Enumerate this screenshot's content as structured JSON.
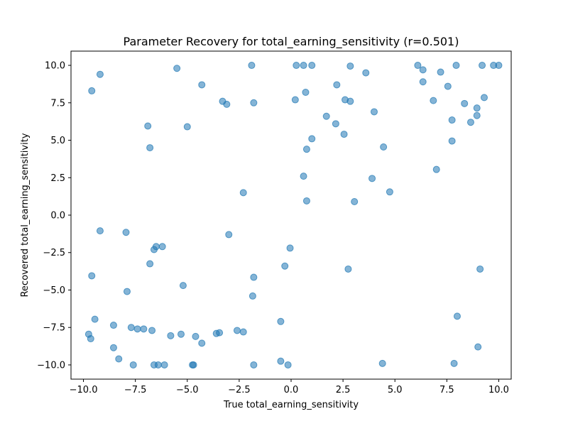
{
  "chart_data": {
    "type": "scatter",
    "title": "Parameter Recovery for total_earning_sensitivity (r=0.501)",
    "xlabel": "True total_earning_sensitivity",
    "ylabel": "Recovered total_earning_sensitivity",
    "xlim": [
      -10.6,
      10.6
    ],
    "ylim": [
      -10.95,
      10.95
    ],
    "x_ticks": [
      -10.0,
      -7.5,
      -5.0,
      -2.5,
      0.0,
      2.5,
      5.0,
      7.5,
      10.0
    ],
    "y_ticks": [
      -10.0,
      -7.5,
      -5.0,
      -2.5,
      0.0,
      2.5,
      5.0,
      7.5,
      10.0
    ],
    "x_tick_labels": [
      "−10.0",
      "−7.5",
      "−5.0",
      "−2.5",
      "0.0",
      "2.5",
      "5.0",
      "7.5",
      "10.0"
    ],
    "y_tick_labels": [
      "−10.0",
      "−7.5",
      "−5.0",
      "−2.5",
      "0.0",
      "2.5",
      "5.0",
      "7.5",
      "10.0"
    ],
    "grid": false,
    "marker_color": "#1f77b4",
    "marker_alpha": 0.55,
    "points": [
      {
        "x": -9.6,
        "y": 8.3
      },
      {
        "x": -9.2,
        "y": 9.4
      },
      {
        "x": -5.5,
        "y": 9.8
      },
      {
        "x": -4.3,
        "y": 8.7
      },
      {
        "x": -3.3,
        "y": 7.6
      },
      {
        "x": -3.1,
        "y": 7.4
      },
      {
        "x": -1.9,
        "y": 10.0
      },
      {
        "x": -1.8,
        "y": 7.5
      },
      {
        "x": -6.9,
        "y": 5.95
      },
      {
        "x": -6.8,
        "y": 4.5
      },
      {
        "x": -5.0,
        "y": 5.9
      },
      {
        "x": -2.3,
        "y": 1.5
      },
      {
        "x": -9.2,
        "y": -1.05
      },
      {
        "x": -7.95,
        "y": -1.15
      },
      {
        "x": -3.0,
        "y": -1.3
      },
      {
        "x": -6.6,
        "y": -2.3
      },
      {
        "x": -6.5,
        "y": -2.1
      },
      {
        "x": -6.2,
        "y": -2.1
      },
      {
        "x": -6.8,
        "y": -3.25
      },
      {
        "x": -9.6,
        "y": -4.05
      },
      {
        "x": -7.9,
        "y": -5.1
      },
      {
        "x": -5.2,
        "y": -4.7
      },
      {
        "x": -1.8,
        "y": -4.15
      },
      {
        "x": -1.85,
        "y": -5.4
      },
      {
        "x": -9.45,
        "y": -6.95
      },
      {
        "x": -9.75,
        "y": -7.95
      },
      {
        "x": -9.65,
        "y": -8.25
      },
      {
        "x": -8.55,
        "y": -7.35
      },
      {
        "x": -7.7,
        "y": -7.5
      },
      {
        "x": -7.4,
        "y": -7.6
      },
      {
        "x": -7.1,
        "y": -7.6
      },
      {
        "x": -6.7,
        "y": -7.7
      },
      {
        "x": -5.8,
        "y": -8.05
      },
      {
        "x": -5.3,
        "y": -7.95
      },
      {
        "x": -4.6,
        "y": -8.1
      },
      {
        "x": -4.3,
        "y": -8.55
      },
      {
        "x": -3.6,
        "y": -7.9
      },
      {
        "x": -3.45,
        "y": -7.85
      },
      {
        "x": -2.6,
        "y": -7.7
      },
      {
        "x": -2.3,
        "y": -7.8
      },
      {
        "x": -8.55,
        "y": -8.85
      },
      {
        "x": -8.3,
        "y": -9.6
      },
      {
        "x": -7.6,
        "y": -10.0
      },
      {
        "x": -6.6,
        "y": -10.0
      },
      {
        "x": -6.4,
        "y": -10.0
      },
      {
        "x": -6.1,
        "y": -10.0
      },
      {
        "x": -4.75,
        "y": -10.0
      },
      {
        "x": -4.7,
        "y": -10.0
      },
      {
        "x": -1.8,
        "y": -10.0
      },
      {
        "x": -0.5,
        "y": -7.1
      },
      {
        "x": -0.5,
        "y": -9.75
      },
      {
        "x": -0.15,
        "y": -10.0
      },
      {
        "x": -0.3,
        "y": -3.4
      },
      {
        "x": -0.05,
        "y": -2.2
      },
      {
        "x": 0.25,
        "y": 10.0
      },
      {
        "x": 0.6,
        "y": 10.0
      },
      {
        "x": 1.0,
        "y": 10.0
      },
      {
        "x": 2.85,
        "y": 9.95
      },
      {
        "x": 3.6,
        "y": 9.5
      },
      {
        "x": 2.2,
        "y": 8.7
      },
      {
        "x": 0.7,
        "y": 8.2
      },
      {
        "x": 0.2,
        "y": 7.7
      },
      {
        "x": 2.6,
        "y": 7.7
      },
      {
        "x": 2.85,
        "y": 7.6
      },
      {
        "x": 4.0,
        "y": 6.9
      },
      {
        "x": 1.7,
        "y": 6.6
      },
      {
        "x": 2.15,
        "y": 6.1
      },
      {
        "x": 2.55,
        "y": 5.4
      },
      {
        "x": 1.0,
        "y": 5.1
      },
      {
        "x": 0.75,
        "y": 4.4
      },
      {
        "x": 4.45,
        "y": 4.55
      },
      {
        "x": 0.6,
        "y": 2.6
      },
      {
        "x": 3.9,
        "y": 2.45
      },
      {
        "x": 0.75,
        "y": 0.95
      },
      {
        "x": 3.05,
        "y": 0.9
      },
      {
        "x": 4.75,
        "y": 1.55
      },
      {
        "x": 2.75,
        "y": -3.6
      },
      {
        "x": 4.4,
        "y": -9.9
      },
      {
        "x": 6.1,
        "y": 10.0
      },
      {
        "x": 6.35,
        "y": 9.7
      },
      {
        "x": 7.95,
        "y": 10.0
      },
      {
        "x": 9.2,
        "y": 10.0
      },
      {
        "x": 9.75,
        "y": 10.0
      },
      {
        "x": 10.0,
        "y": 10.0
      },
      {
        "x": 7.2,
        "y": 9.55
      },
      {
        "x": 6.35,
        "y": 8.9
      },
      {
        "x": 7.55,
        "y": 8.6
      },
      {
        "x": 9.3,
        "y": 7.85
      },
      {
        "x": 6.85,
        "y": 7.65
      },
      {
        "x": 8.35,
        "y": 7.45
      },
      {
        "x": 8.95,
        "y": 7.15
      },
      {
        "x": 8.95,
        "y": 6.65
      },
      {
        "x": 7.75,
        "y": 6.35
      },
      {
        "x": 8.65,
        "y": 6.2
      },
      {
        "x": 7.75,
        "y": 4.95
      },
      {
        "x": 7.0,
        "y": 3.05
      },
      {
        "x": 9.1,
        "y": -3.6
      },
      {
        "x": 8.0,
        "y": -6.75
      },
      {
        "x": 9.0,
        "y": -8.8
      },
      {
        "x": 7.85,
        "y": -9.9
      }
    ]
  }
}
